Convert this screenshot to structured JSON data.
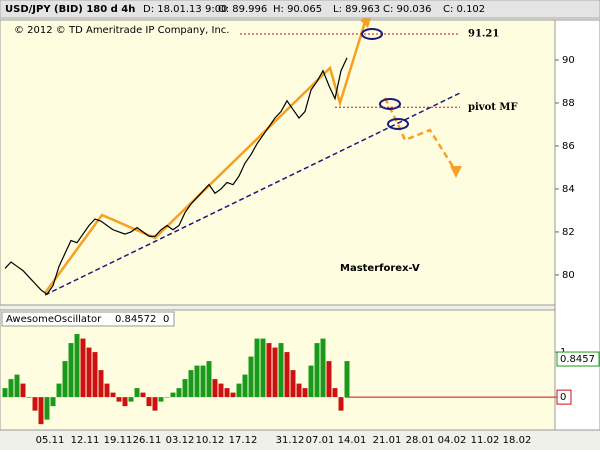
{
  "header": {
    "fields": [
      "USD/JPY (BID) 180 d 4h",
      "D: 18.01.13 9:00",
      "O: 89.996",
      "H: 90.065",
      "L: 89.963",
      "C: 90.036",
      "C: 0.102"
    ],
    "copyright": "© 2012 © TD Ameritrade IP Company, Inc."
  },
  "x_labels": [
    "05.11",
    "12.11",
    "19.11",
    "26.11",
    "03.12",
    "10.12",
    "17.12",
    "31.12",
    "07.01",
    "14.01",
    "21.01",
    "28.01",
    "04.02",
    "11.02",
    "18.02"
  ],
  "chart_data": [
    {
      "type": "line",
      "annotation": "Masterforex-V",
      "color": "#000000",
      "values": [
        80.3,
        80.6,
        80.4,
        80.2,
        79.9,
        79.6,
        79.3,
        79.1,
        79.5,
        80.4,
        81.0,
        81.6,
        81.5,
        81.9,
        82.3,
        82.6,
        82.5,
        82.3,
        82.1,
        82.0,
        81.9,
        82.0,
        82.2,
        82.0,
        81.8,
        81.8,
        82.1,
        82.3,
        82.1,
        82.3,
        82.9,
        83.3,
        83.6,
        83.9,
        84.2,
        83.8,
        84.0,
        84.3,
        84.2,
        84.6,
        85.2,
        85.6,
        86.1,
        86.5,
        86.9,
        87.3,
        87.6,
        88.1,
        87.7,
        87.3,
        87.6,
        88.6,
        89.0,
        89.5,
        88.8,
        88.2,
        89.5,
        90.1
      ],
      "ylim": [
        78.6,
        91.86
      ],
      "yticks": [
        80,
        82,
        84,
        86,
        88,
        90
      ],
      "levels": [
        {
          "value": 91.21,
          "label": "91.21"
        },
        {
          "value": 87.8,
          "label": "pivot MF"
        }
      ]
    },
    {
      "type": "bar",
      "title": "AwesomeOscillator",
      "subtitle": "0.84572",
      "zero_label": "0",
      "values": [
        0.2,
        0.4,
        0.5,
        0.3,
        0.0,
        -0.3,
        -0.6,
        -0.5,
        -0.2,
        0.3,
        0.8,
        1.2,
        1.4,
        1.3,
        1.1,
        1.0,
        0.6,
        0.3,
        0.1,
        -0.1,
        -0.2,
        -0.1,
        0.2,
        0.1,
        -0.2,
        -0.3,
        -0.1,
        0.0,
        0.1,
        0.2,
        0.4,
        0.6,
        0.7,
        0.7,
        0.8,
        0.4,
        0.3,
        0.2,
        0.1,
        0.3,
        0.5,
        0.9,
        1.3,
        1.3,
        1.2,
        1.1,
        1.2,
        1.0,
        0.6,
        0.3,
        0.2,
        0.7,
        1.2,
        1.3,
        0.8,
        0.2,
        -0.3,
        0.8
      ],
      "colors": {
        "up": "#1a9a1a",
        "down": "#cc1111"
      },
      "ylim": [
        -0.73,
        1.89
      ],
      "yticks": [
        0,
        1
      ],
      "current_value": 0.8457
    }
  ]
}
